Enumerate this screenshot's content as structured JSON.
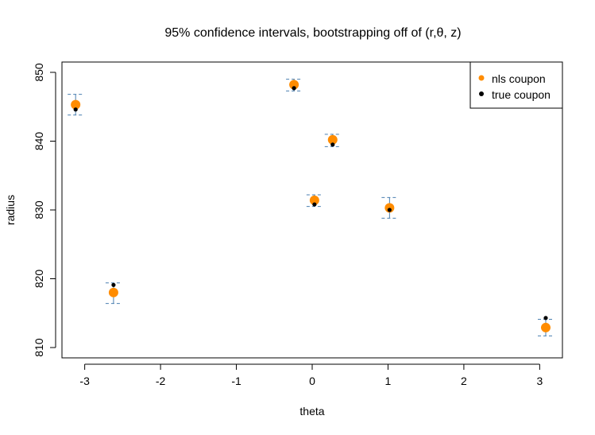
{
  "chart_data": {
    "type": "scatter",
    "title": "95% confidence intervals, bootstrapping off of (r,θ, z)",
    "xlabel": "theta",
    "ylabel": "radius",
    "xlim": [
      -3.3,
      3.3
    ],
    "ylim": [
      808.5,
      851.5
    ],
    "x_ticks": [
      -3,
      -2,
      -1,
      0,
      1,
      2,
      3
    ],
    "x_tick_labels": [
      "-3",
      "-2",
      "-1",
      "0",
      "1",
      "2",
      "3"
    ],
    "y_ticks": [
      810,
      820,
      830,
      840,
      850
    ],
    "y_tick_labels": [
      "810",
      "820",
      "830",
      "840",
      "850"
    ],
    "grid": false,
    "legend_position": "top-right",
    "series": [
      {
        "name": "nls coupon",
        "color": "#FF8C00",
        "marker": "large-dot",
        "x": [
          -3.12,
          -2.62,
          -0.24,
          0.03,
          0.27,
          1.02,
          3.08
        ],
        "y": [
          845.3,
          818.0,
          848.2,
          831.4,
          840.2,
          830.3,
          812.9
        ]
      },
      {
        "name": "true coupon",
        "color": "#000000",
        "marker": "small-dot",
        "x": [
          -3.12,
          -2.62,
          -0.24,
          0.03,
          0.27,
          1.02,
          3.08
        ],
        "y": [
          844.6,
          819.1,
          847.7,
          830.8,
          839.5,
          830.0,
          814.3
        ]
      }
    ],
    "confidence_intervals": {
      "color": "#4A7FB0",
      "style": "dashed",
      "x": [
        -3.12,
        -2.62,
        -0.24,
        0.03,
        0.27,
        1.02,
        3.08
      ],
      "lower": [
        843.8,
        816.4,
        847.3,
        830.5,
        839.2,
        828.8,
        811.7
      ],
      "upper": [
        846.8,
        819.4,
        849.0,
        832.2,
        841.0,
        831.8,
        814.1
      ]
    }
  }
}
